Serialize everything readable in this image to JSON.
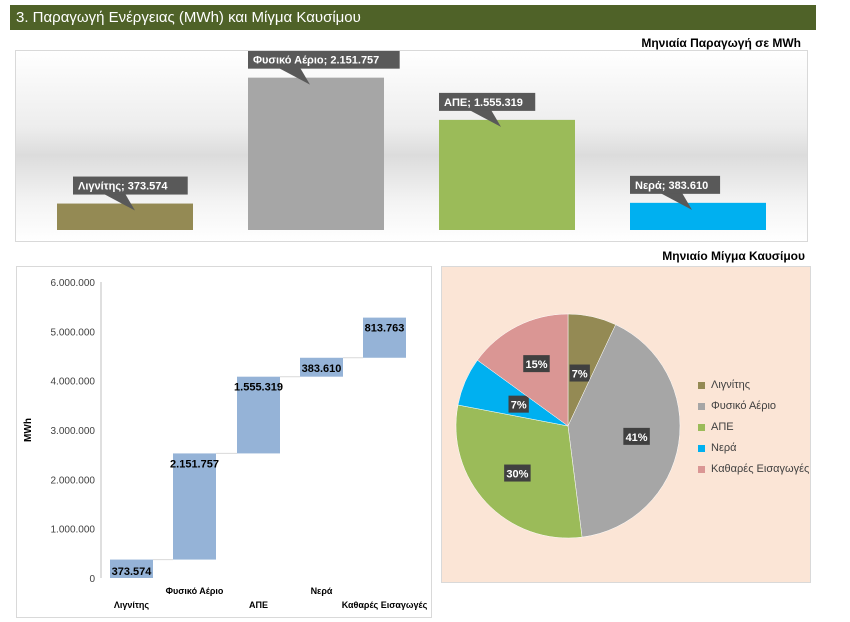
{
  "header": {
    "title": "3. Παραγωγή Ενέργειας (MWh) και Μίγμα Καυσίμου"
  },
  "chart_data": [
    {
      "id": "monthly-production",
      "type": "bar",
      "title": "Μηνιαία Παραγωγή σε MWh",
      "categories": [
        "Λιγνίτης",
        "Φυσικό Αέριο",
        "ΑΠΕ",
        "Νερά"
      ],
      "values": [
        373574,
        2151757,
        1555319,
        383610
      ],
      "data_labels": [
        "Λιγνίτης; 373.574",
        "Φυσικό Αέριο; 2.151.757",
        "ΑΠΕ; 1.555.319",
        "Νερά; 383.610"
      ],
      "colors": [
        "#948a54",
        "#a6a6a6",
        "#9bbb59",
        "#00b0f0"
      ],
      "ylim": [
        0,
        2500000
      ],
      "grid": false
    },
    {
      "id": "waterfall",
      "type": "bar",
      "subtype": "waterfall",
      "categories": [
        "Λιγνίτης",
        "Φυσικό Αέριο",
        "ΑΠΕ",
        "Νερά",
        "Καθαρές Εισαγωγές"
      ],
      "values": [
        373574,
        2151757,
        1555319,
        383610,
        813763
      ],
      "data_labels": [
        "373.574",
        "2.151.757",
        "1.555.319",
        "383.610",
        "813.763"
      ],
      "ylabel": "MWh",
      "ylim": [
        0,
        6000000
      ],
      "yticks": [
        "0",
        "1.000.000",
        "2.000.000",
        "3.000.000",
        "4.000.000",
        "5.000.000",
        "6.000.000"
      ],
      "color": "#95b3d7",
      "grid": false
    },
    {
      "id": "fuel-mix",
      "type": "pie",
      "title": "Μηνιαίο Μίγμα Καυσίμου",
      "labels": [
        "Λιγνίτης",
        "Φυσικό Αέριο",
        "ΑΠΕ",
        "Νερά",
        "Καθαρές Εισαγωγές"
      ],
      "values": [
        7,
        41,
        30,
        7,
        15
      ],
      "value_labels": [
        "7%",
        "41%",
        "30%",
        "7%",
        "15%"
      ],
      "colors": [
        "#948a54",
        "#a6a6a6",
        "#9bbb59",
        "#00b0f0",
        "#da9694"
      ],
      "legend": "right"
    }
  ]
}
